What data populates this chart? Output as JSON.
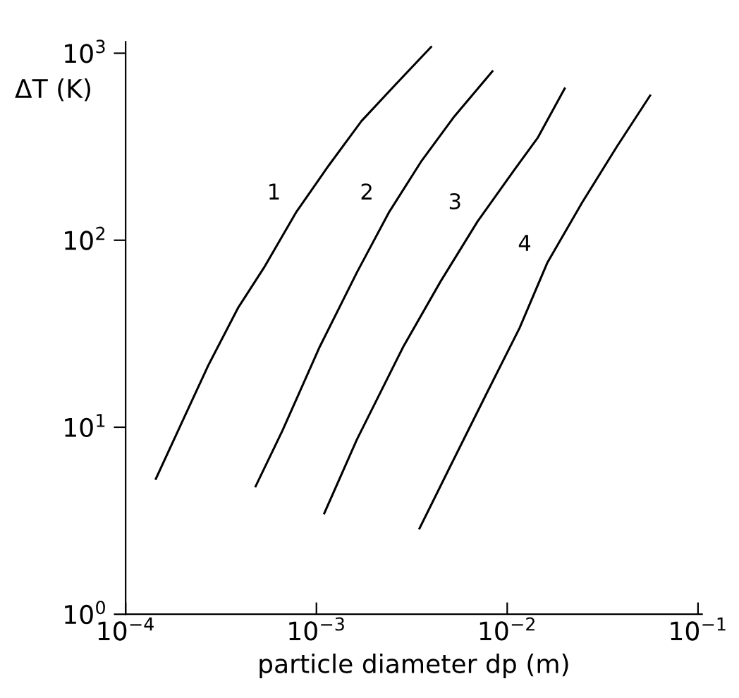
{
  "chart_data": {
    "type": "line",
    "xlabel": "particle diameter dp (m)",
    "ylabel": "ΔT (K)",
    "log": "xy",
    "grid": false,
    "legend": false,
    "marker": "none",
    "line_style": "solid",
    "xlim": [
      0.0001,
      0.105
    ],
    "ylim": [
      1,
      1150
    ],
    "xticks": [
      {
        "value": 0.0001,
        "label": "10$^{−4}$"
      },
      {
        "value": 0.001,
        "label": "10$^{−3}$"
      },
      {
        "value": 0.01,
        "label": "10$^{−2}$"
      },
      {
        "value": 0.1,
        "label": "10$^{−1}$"
      }
    ],
    "yticks": [
      {
        "value": 1,
        "label": "10$^{0}$"
      },
      {
        "value": 10,
        "label": "10$^{1}$"
      },
      {
        "value": 100,
        "label": "10$^{2}$"
      },
      {
        "value": 1000,
        "label": "10$^{3}$"
      }
    ],
    "series": [
      {
        "name": "1",
        "color": "#000000",
        "x": [
          0.000144,
          0.000271,
          0.00039,
          0.000531,
          0.000786,
          0.00116,
          0.00172,
          0.00255,
          0.00399
        ],
        "values": [
          5.3,
          21.4,
          43.8,
          71.3,
          142,
          251,
          433,
          666,
          1080
        ]
      },
      {
        "name": "2",
        "color": "#000000",
        "x": [
          0.00048,
          0.000664,
          0.00104,
          0.00163,
          0.00241,
          0.00356,
          0.00528,
          0.00836
        ],
        "values": [
          4.83,
          9.6,
          26.9,
          67.3,
          142,
          266,
          459,
          800
        ]
      },
      {
        "name": "3",
        "color": "#000000",
        "x": [
          0.0011,
          0.00163,
          0.00285,
          0.00447,
          0.00699,
          0.0109,
          0.0145,
          0.02
        ],
        "values": [
          3.47,
          8.6,
          26.9,
          60.1,
          126,
          238,
          355,
          647
        ]
      },
      {
        "name": "4",
        "color": "#000000",
        "x": [
          0.00347,
          0.00499,
          0.00781,
          0.0116,
          0.0162,
          0.0247,
          0.0375,
          0.0561
        ],
        "values": [
          2.88,
          6.08,
          15.2,
          33.9,
          75.5,
          159,
          316,
          594
        ]
      }
    ]
  }
}
